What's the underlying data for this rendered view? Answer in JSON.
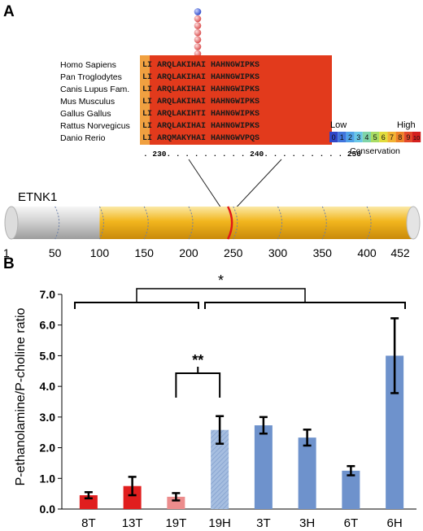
{
  "panel_a": {
    "label": "A",
    "species": [
      "Homo Sapiens",
      "Pan Troglodytes",
      "Canis Lupus Fam.",
      "Mus Musculus",
      "Gallus Gallus",
      "Rattus Norvegicus",
      "Danio Rerio"
    ],
    "sequences": [
      "LI ARQLAKIHAI HAHNGWIPKS",
      "LI ARQLAKIHAI HAHNGWIPKS",
      "LI ARQLAKIHAI HAHNGWIPKS",
      "LI ARQLAKIHAI HAHNGWIPKS",
      "LI ARQLAKIHTI HAHNGWIPKS",
      "LI ARQLAKIHAI HAHNGWIPKS",
      "LI ARQMAKYHAI HAHNGWVPQS"
    ],
    "position_ruler": ". 230. . . . . . . . . 240. . . . . . . . . 250",
    "conservation_legend": {
      "low_label": "Low",
      "high_label": "High",
      "title": "Conservation",
      "levels": [
        "0",
        "1",
        "2",
        "3",
        "4",
        "5",
        "6",
        "7",
        "8",
        "9",
        "10"
      ],
      "colors": [
        "#2f46c8",
        "#3f74dc",
        "#4fa2e8",
        "#69c7e6",
        "#7fd4a8",
        "#a8dc64",
        "#e2dc3c",
        "#f2b232",
        "#ee8228",
        "#e2482a",
        "#d4201e"
      ]
    },
    "protein_name": "ETNK1",
    "protein_ticks": [
      "1",
      "50",
      "100",
      "150",
      "200",
      "250",
      "300",
      "350",
      "400",
      "452"
    ],
    "protein_length": 452,
    "domain_start": 100,
    "mutation_position": 244,
    "mutation_count": 7,
    "colors": {
      "domain": "#f2b61e",
      "non_domain": "#d2d2d2",
      "mutation_line": "#e01818",
      "alignment_bg": "#e23a1c",
      "alignment_bg_light": "#f0a040",
      "pin_top": "#3a5ad8",
      "pin": "#e67070"
    }
  },
  "panel_b": {
    "label": "B",
    "significance": {
      "outer": "*",
      "inner": "**"
    }
  },
  "chart_data": {
    "type": "bar",
    "categories": [
      "8T",
      "13T",
      "19T",
      "19H",
      "3T",
      "3H",
      "6T",
      "6H"
    ],
    "values": [
      0.45,
      0.75,
      0.4,
      2.58,
      2.73,
      2.33,
      1.25,
      5.0
    ],
    "errors": [
      0.1,
      0.3,
      0.12,
      0.45,
      0.27,
      0.26,
      0.15,
      1.22
    ],
    "bar_colors": [
      "#e01e1e",
      "#e01e1e",
      "#ec8c8c",
      "#a6bee0",
      "#6e92cc",
      "#6e92cc",
      "#6e92cc",
      "#6e92cc"
    ],
    "hatched": [
      false,
      false,
      false,
      true,
      false,
      false,
      false,
      false
    ],
    "ylabel": "P-ethanolamine/P-choline ratio",
    "xlabel": "",
    "ylim": [
      0,
      7
    ],
    "yticks": [
      "0.0",
      "1.0",
      "2.0",
      "3.0",
      "4.0",
      "5.0",
      "6.0",
      "7.0"
    ],
    "grid": false
  }
}
